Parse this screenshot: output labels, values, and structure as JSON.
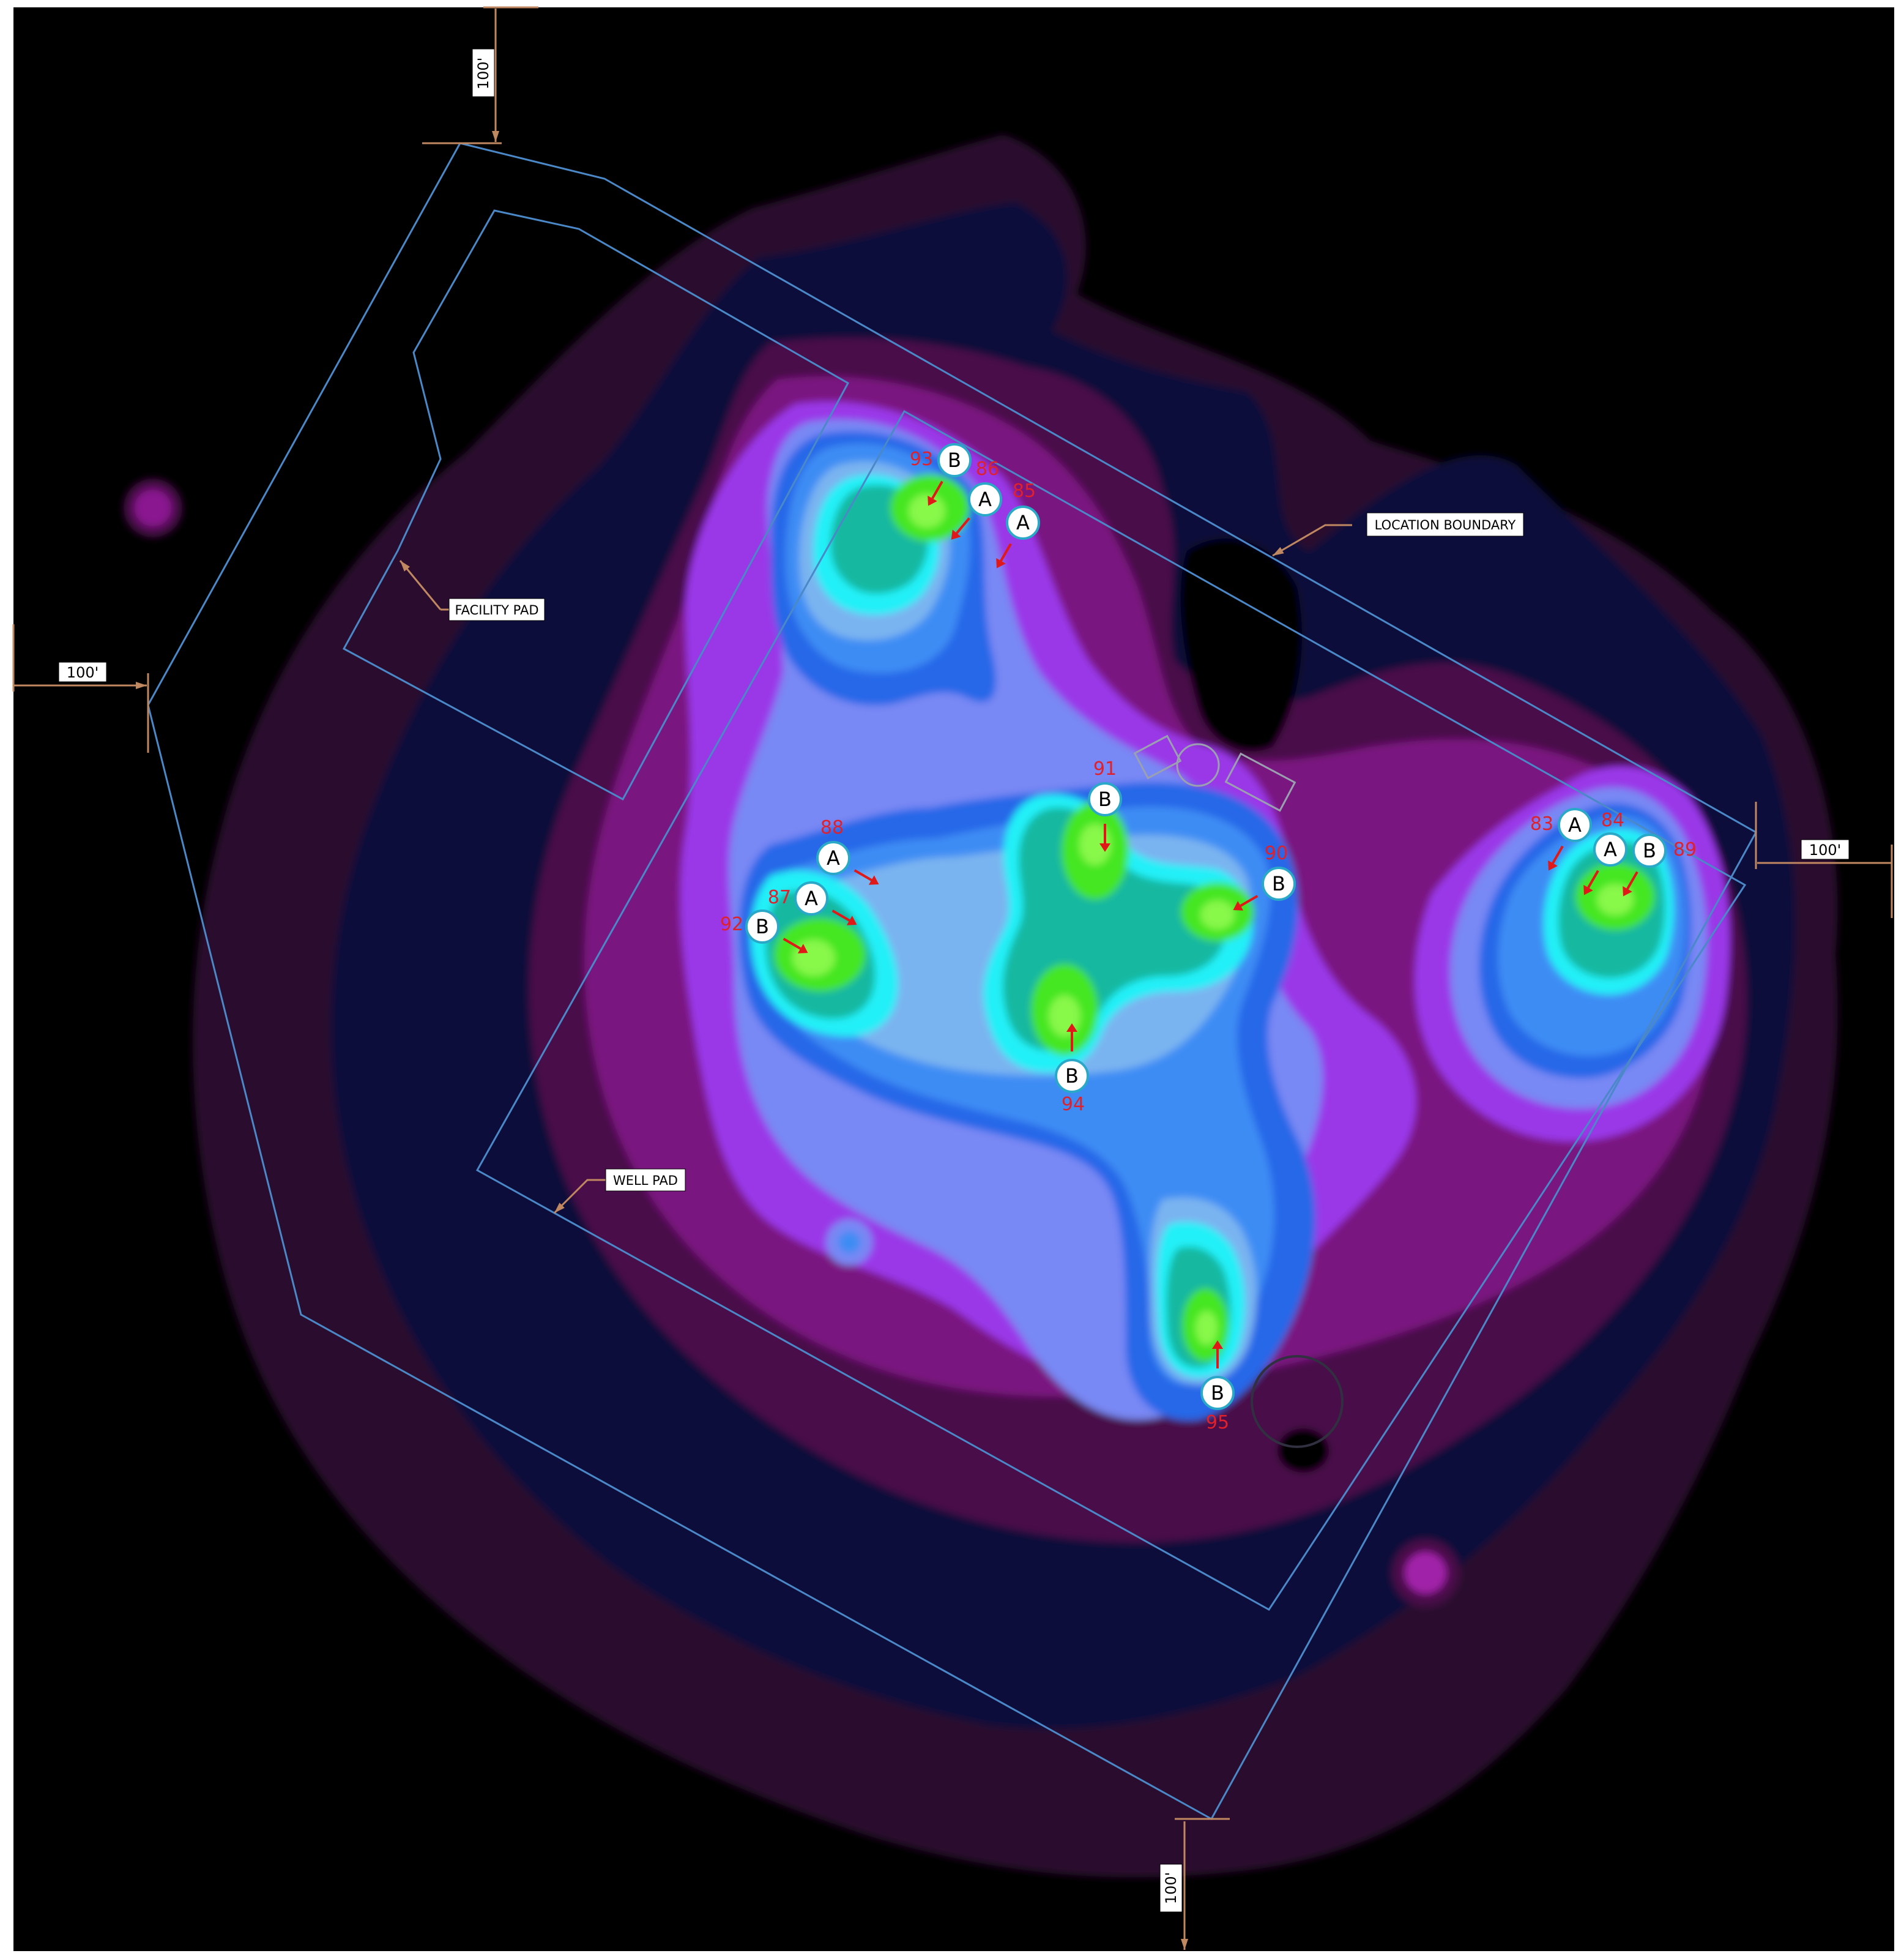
{
  "callouts": {
    "facility_pad": "FACILITY PAD",
    "location_boundary": "LOCATION BOUNDARY",
    "well_pad": "WELL PAD"
  },
  "dimensions": {
    "top": "100'",
    "left": "100'",
    "right": "100'",
    "bottom": "100'"
  },
  "colors": {
    "background": "#000000",
    "boundary_line": "#4a88c8",
    "dimension_line": "#c08860",
    "fixture_number": "#e0202a",
    "aim_arrow": "#e01818",
    "fixture_fill": "#ffffff",
    "fixture_outline": "#2aa8c8"
  },
  "fixtures": [
    {
      "type": "B",
      "number": "93"
    },
    {
      "type": "A",
      "number": "86"
    },
    {
      "type": "A",
      "number": "85"
    },
    {
      "type": "B",
      "number": "91"
    },
    {
      "type": "A",
      "number": "88"
    },
    {
      "type": "A",
      "number": "87"
    },
    {
      "type": "B",
      "number": "92"
    },
    {
      "type": "B",
      "number": "90"
    },
    {
      "type": "B",
      "number": "94"
    },
    {
      "type": "B",
      "number": "95"
    },
    {
      "type": "A",
      "number": "83"
    },
    {
      "type": "A",
      "number": "84"
    },
    {
      "type": "B",
      "number": "89"
    }
  ]
}
